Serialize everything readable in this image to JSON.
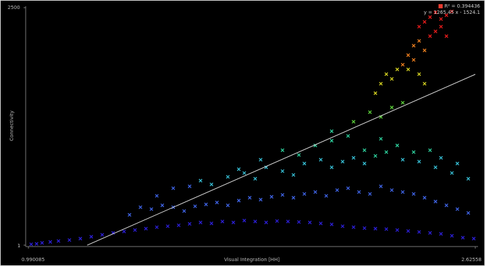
{
  "chart_data": {
    "type": "scatter",
    "title": "",
    "xlabel": "Visual Integration [HH]",
    "ylabel": "Connectivity",
    "x_tick_labels": [
      "0.990085",
      "2.62558"
    ],
    "y_tick_labels": [
      "1",
      "2500"
    ],
    "xlim": [
      0.990085,
      2.62558
    ],
    "ylim": [
      1,
      2500
    ],
    "grid": false,
    "legend_position": "top-right",
    "legend": {
      "r2_label": "R² = 0.394436",
      "equation_label": "y = 1265.45 x - 1524.1",
      "swatch_color": "#e83a2e"
    },
    "regression": {
      "slope": 1265.45,
      "intercept": -1524.1,
      "color": "#d8d8d8"
    },
    "colormap": [
      "#2c1fd6",
      "#3f64e6",
      "#36bcd2",
      "#2ecf9c",
      "#5ccf3a",
      "#d3d021",
      "#f07f1e",
      "#e61c1c"
    ],
    "series": [
      {
        "marker": "x",
        "x": [
          1.0,
          1.02,
          1.04,
          1.07,
          1.1,
          1.14,
          1.18,
          1.22,
          1.26,
          1.3,
          1.34,
          1.38,
          1.42,
          1.46,
          1.5,
          1.54,
          1.58,
          1.62,
          1.66,
          1.7,
          1.74,
          1.78,
          1.82,
          1.86,
          1.9,
          1.94,
          1.98,
          2.02,
          2.06,
          2.1,
          2.14,
          2.18,
          2.22,
          2.26,
          2.3,
          2.34,
          2.38,
          2.42,
          2.46,
          2.5,
          2.54,
          2.58,
          2.62,
          1.36,
          1.4,
          1.44,
          1.48,
          1.52,
          1.56,
          1.6,
          1.64,
          1.68,
          1.72,
          1.76,
          1.8,
          1.84,
          1.88,
          1.92,
          1.96,
          2.0,
          2.04,
          2.08,
          2.12,
          2.16,
          2.2,
          2.24,
          2.28,
          2.32,
          2.36,
          2.4,
          2.44,
          2.48,
          2.52,
          2.56,
          2.6,
          1.46,
          1.52,
          1.58,
          1.62,
          1.66,
          1.72,
          1.78,
          1.82,
          1.86,
          1.92,
          1.96,
          2.0,
          2.06,
          2.1,
          2.14,
          2.18,
          2.22,
          2.26,
          2.3,
          2.36,
          2.42,
          2.48,
          2.54,
          2.6,
          1.76,
          1.84,
          1.92,
          1.98,
          2.04,
          2.1,
          2.16,
          2.22,
          2.28,
          2.34,
          2.4,
          2.46,
          2.5,
          2.56,
          2.1,
          2.18,
          2.24,
          2.28,
          2.32,
          2.36,
          2.26,
          2.28,
          2.3,
          2.32,
          2.34,
          2.36,
          2.38,
          2.4,
          2.42,
          2.44,
          2.38,
          2.4,
          2.42,
          2.44,
          2.46,
          2.48,
          2.5,
          2.52,
          2.42,
          2.44,
          2.46,
          2.48,
          2.5,
          2.52,
          2.54
        ],
        "y": [
          10,
          15,
          25,
          35,
          45,
          55,
          70,
          90,
          110,
          130,
          145,
          160,
          175,
          190,
          200,
          210,
          225,
          240,
          230,
          250,
          240,
          260,
          250,
          240,
          255,
          250,
          245,
          240,
          230,
          220,
          200,
          190,
          180,
          175,
          170,
          160,
          150,
          140,
          130,
          120,
          100,
          80,
          70,
          320,
          400,
          380,
          420,
          400,
          360,
          410,
          430,
          450,
          420,
          470,
          500,
          480,
          510,
          530,
          500,
          540,
          560,
          520,
          580,
          600,
          560,
          540,
          620,
          580,
          560,
          540,
          500,
          460,
          420,
          380,
          340,
          520,
          600,
          620,
          680,
          640,
          720,
          760,
          700,
          820,
          780,
          740,
          860,
          900,
          820,
          880,
          920,
          860,
          940,
          980,
          900,
          880,
          820,
          760,
          700,
          800,
          900,
          1000,
          950,
          1050,
          1100,
          1150,
          1000,
          1120,
          1050,
          980,
          1000,
          920,
          860,
          1200,
          1300,
          1400,
          1350,
          1450,
          1500,
          1600,
          1700,
          1800,
          1750,
          1850,
          1900,
          1850,
          1950,
          1800,
          1700,
          2000,
          2100,
          2150,
          2050,
          2200,
          2250,
          2300,
          2200,
          2300,
          2350,
          2400,
          2450,
          2380,
          2420,
          2460
        ]
      }
    ]
  }
}
